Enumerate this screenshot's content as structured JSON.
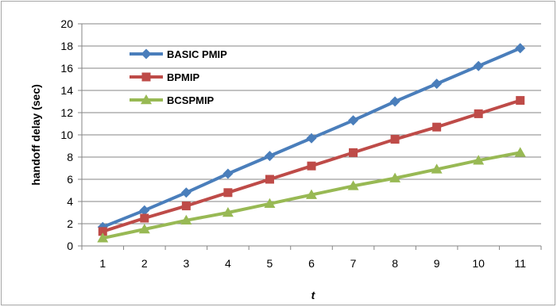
{
  "chart_data": {
    "type": "line",
    "title": "",
    "xlabel": "t",
    "ylabel": "handoff delay (sec)",
    "x": [
      1,
      2,
      3,
      4,
      5,
      6,
      7,
      8,
      9,
      10,
      11
    ],
    "ylim": [
      0,
      20
    ],
    "yticks": [
      0,
      2,
      4,
      6,
      8,
      10,
      12,
      14,
      16,
      18,
      20
    ],
    "grid": true,
    "legend_position": "top-left",
    "series": [
      {
        "name": "BASIC PMIP",
        "color": "#4a7ebb",
        "marker": "diamond",
        "values": [
          1.7,
          3.2,
          4.8,
          6.5,
          8.1,
          9.7,
          11.3,
          13.0,
          14.6,
          16.2,
          17.8
        ]
      },
      {
        "name": "BPMIP",
        "color": "#be4b48",
        "marker": "square",
        "values": [
          1.3,
          2.5,
          3.6,
          4.8,
          6.0,
          7.2,
          8.4,
          9.6,
          10.7,
          11.9,
          13.1
        ]
      },
      {
        "name": "BCSPMIP",
        "color": "#98b954",
        "marker": "triangle",
        "values": [
          0.7,
          1.5,
          2.3,
          3.0,
          3.8,
          4.6,
          5.4,
          6.1,
          6.9,
          7.7,
          8.4
        ]
      }
    ]
  }
}
